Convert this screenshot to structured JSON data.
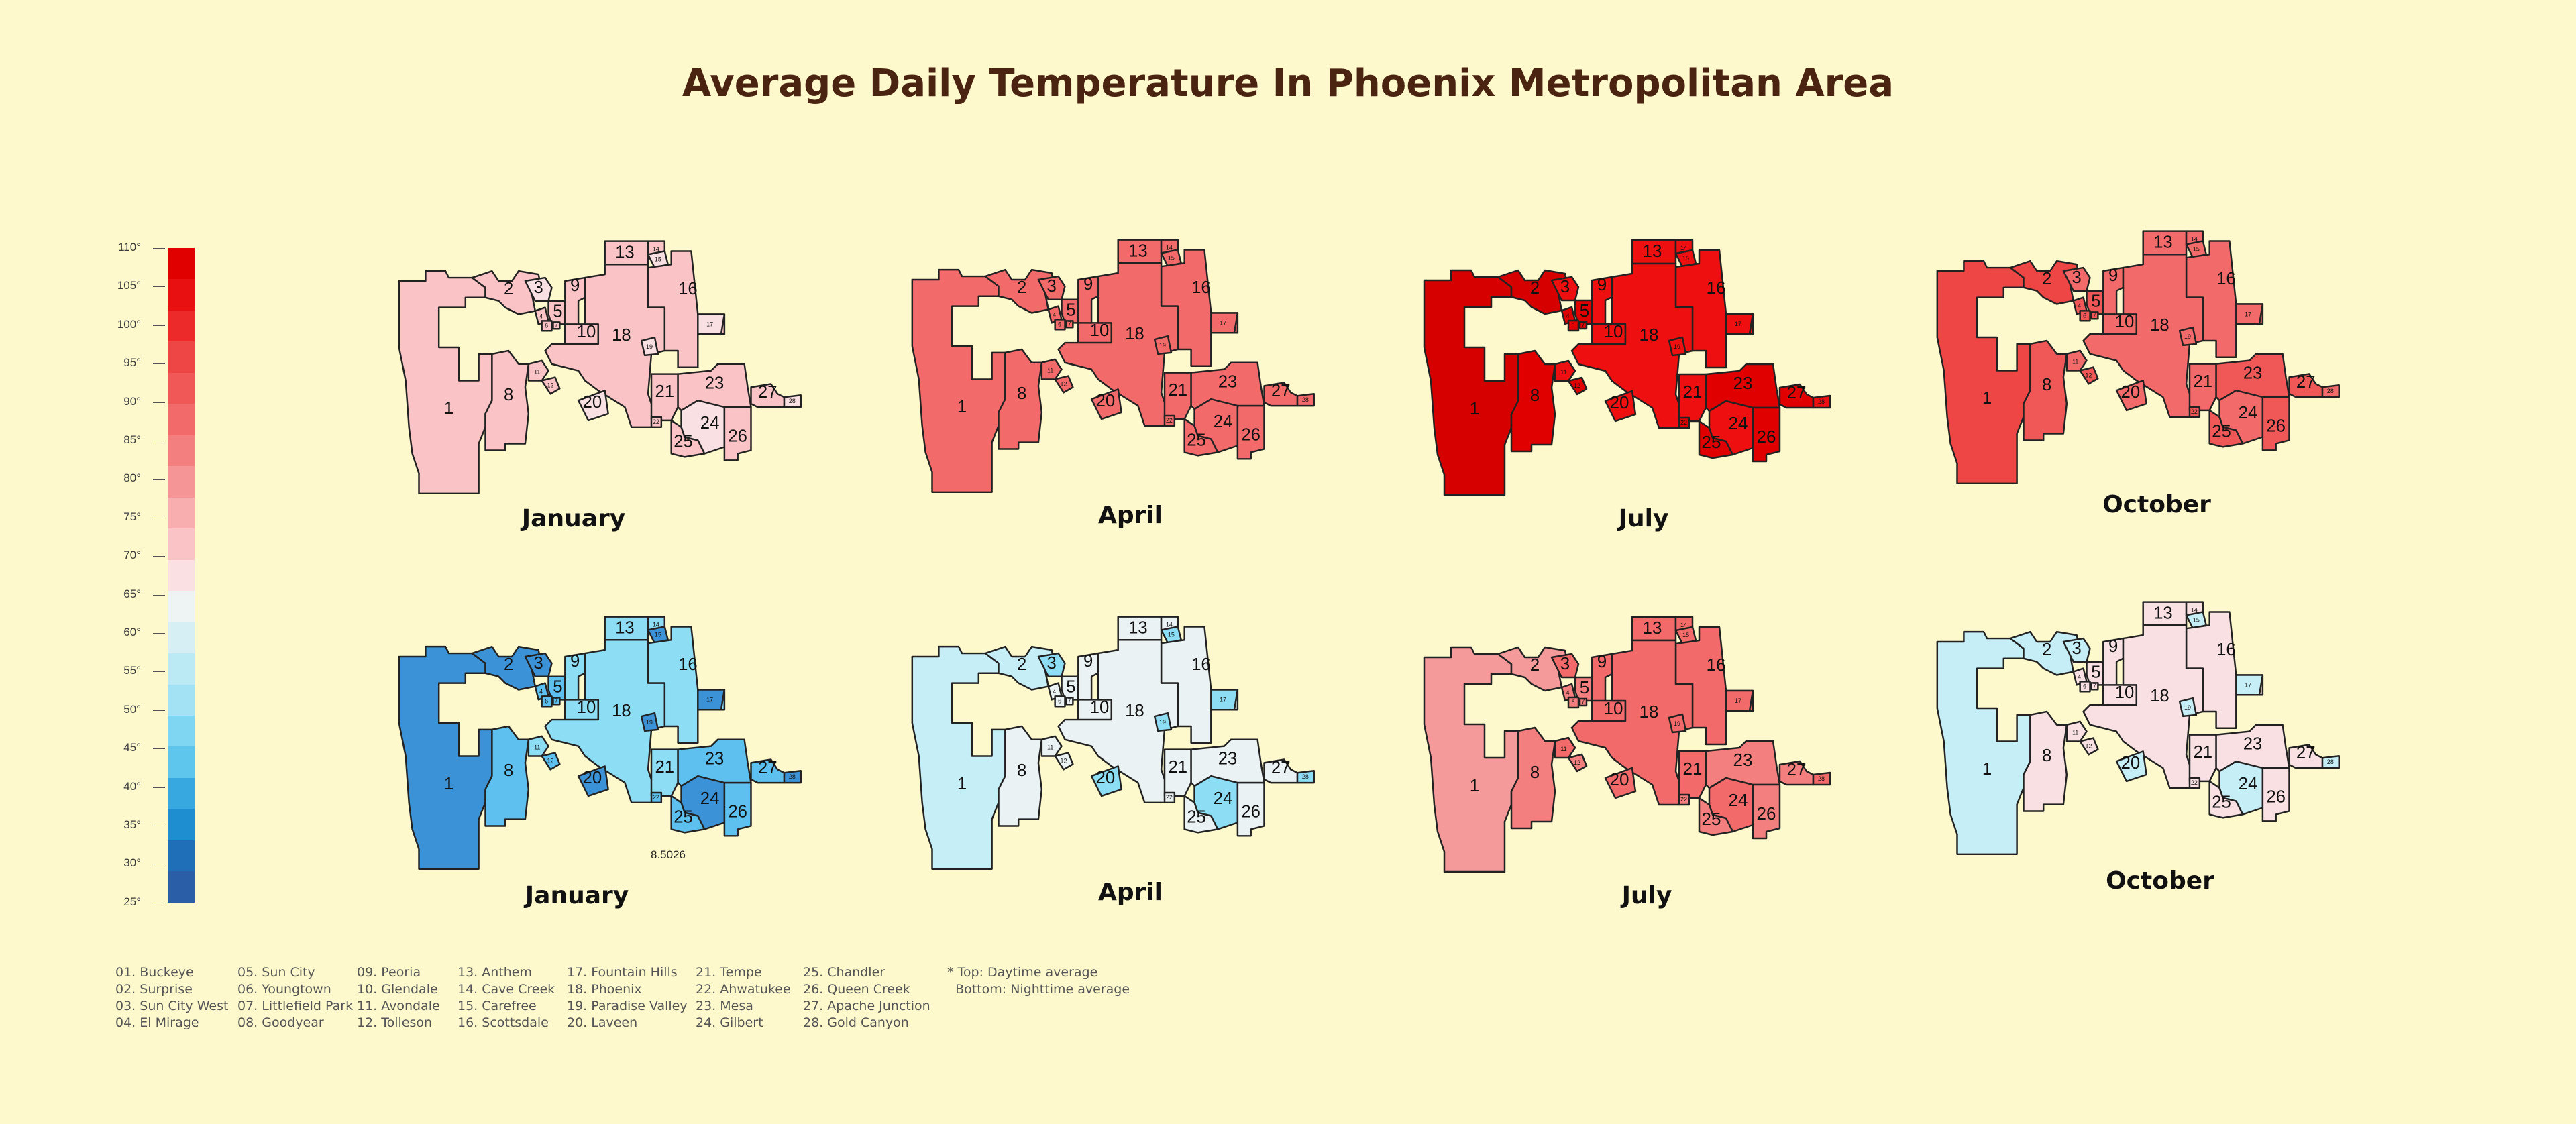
{
  "title": "Average Daily Temperature In Phoenix Metropolitan Area",
  "legend": {
    "ticks": [
      "110°",
      "105°",
      "100°",
      "95°",
      "90°",
      "85°",
      "80°",
      "75°",
      "70°",
      "65°",
      "60°",
      "55°",
      "50°",
      "45°",
      "40°",
      "35°",
      "30°",
      "25°"
    ],
    "bins": [
      "#E00000",
      "#E81010",
      "#EC2A2A",
      "#EE4545",
      "#F05858",
      "#F26A6A",
      "#F47F7F",
      "#F69595",
      "#F8AEAE",
      "#FAC4C6",
      "#FAE0E3",
      "#EEF4F4",
      "#D6EFF4",
      "#BCEAF4",
      "#A2E2F4",
      "#7FD6F2",
      "#5EC6EC",
      "#38A9E0",
      "#1F8ED0",
      "#1E6FB8",
      "#2A5FA8"
    ]
  },
  "region_colors": {
    "pale_pink": "#FAC4C6",
    "salmon": "#F26A6A",
    "red_dark": "#D60000",
    "red": "#EE1010",
    "rose": "#F49A9A",
    "blue_mid": "#3C92D6",
    "cyan": "#8DDDF4",
    "sky": "#5EC0EE",
    "pale_blue": "#C6EEF6",
    "pale_grey": "#EBF2F4",
    "pale_rose": "#F8E0E3"
  },
  "maps": [
    {
      "month": "January",
      "row": "top",
      "fills": {
        "base": "#FAC4C6",
        "big": "#FAC4C6",
        "alt": "#FAC4C6",
        "accent": "#F8E0E3"
      }
    },
    {
      "month": "April",
      "row": "top",
      "fills": {
        "base": "#F26A6A",
        "big": "#F26A6A",
        "alt": "#F26A6A",
        "accent": "#F26A6A"
      }
    },
    {
      "month": "July",
      "row": "top",
      "fills": {
        "base": "#D60000",
        "big": "#EE1010",
        "alt": "#E00000",
        "accent": "#EE1010"
      }
    },
    {
      "month": "October",
      "row": "top",
      "fills": {
        "base": "#EE4545",
        "big": "#F26A6A",
        "alt": "#F05858",
        "accent": "#F26A6A"
      }
    },
    {
      "month": "January",
      "row": "bottom",
      "fills": {
        "base": "#3C92D6",
        "big": "#8DDDF4",
        "alt": "#5EC0EE",
        "accent": "#3C92D6"
      },
      "extra_label": "8.5026"
    },
    {
      "month": "April",
      "row": "bottom",
      "fills": {
        "base": "#C6EEF6",
        "big": "#EBF2F4",
        "alt": "#EBF2F4",
        "accent": "#8DDDF4"
      }
    },
    {
      "month": "July",
      "row": "bottom",
      "fills": {
        "base": "#F49A9A",
        "big": "#F26A6A",
        "alt": "#F47F7F",
        "accent": "#F26A6A"
      }
    },
    {
      "month": "October",
      "row": "bottom",
      "fills": {
        "base": "#C6EEF6",
        "big": "#F8E0E3",
        "alt": "#F8E0E3",
        "accent": "#C6EEF6"
      }
    }
  ],
  "footer": {
    "columns": [
      [
        "01. Buckeye",
        "02. Surprise",
        "03. Sun City West",
        "04. El Mirage"
      ],
      [
        "05. Sun City",
        "06. Youngtown",
        "07. Littlefield Park",
        "08. Goodyear"
      ],
      [
        "09. Peoria",
        "10. Glendale",
        "11. Avondale",
        "12. Tolleson"
      ],
      [
        "13. Anthem",
        "14. Cave Creek",
        "15. Carefree",
        "16. Scottsdale"
      ],
      [
        "17. Fountain Hills",
        "18. Phoenix",
        "19. Paradise Valley",
        "20. Laveen"
      ],
      [
        "21. Tempe",
        "22. Ahwatukee",
        "23. Mesa",
        "24. Gilbert"
      ],
      [
        "25. Chandler",
        "26. Queen Creek",
        "27. Apache Junction",
        "28. Gold Canyon"
      ]
    ],
    "note_line1": "* Top: Daytime average",
    "note_line2": "  Bottom: Nighttime average"
  }
}
